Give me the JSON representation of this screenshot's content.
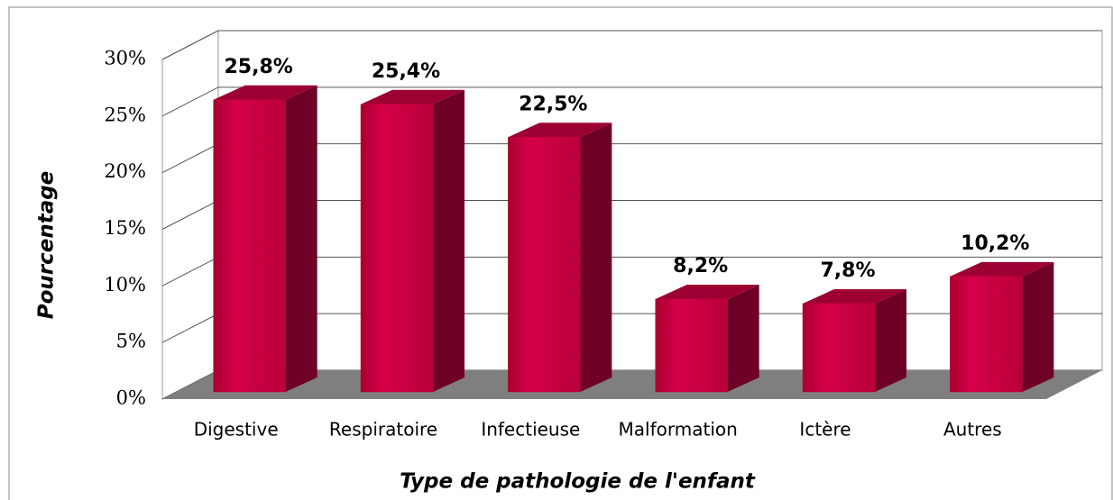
{
  "chart_data": {
    "type": "bar3d",
    "x_label": "Type de pathologie de l'enfant",
    "y_label": "Pourcentage",
    "categories": [
      "Digestive",
      "Respiratoire",
      "Infectieuse",
      "Malformation",
      "Ictère",
      "Autres"
    ],
    "values": [
      25.8,
      25.4,
      22.5,
      8.2,
      7.8,
      10.2
    ],
    "value_labels": [
      "25,8%",
      "25,4%",
      "22,5%",
      "8,2%",
      "7,8%",
      "10,2%"
    ],
    "color": "#c8003c",
    "ylim": [
      0,
      30
    ],
    "yticks": [
      {
        "value": 0,
        "label": "0%"
      },
      {
        "value": 5,
        "label": "5%"
      },
      {
        "value": 10,
        "label": "10%"
      },
      {
        "value": 15,
        "label": "15%"
      },
      {
        "value": 20,
        "label": "20%"
      },
      {
        "value": 25,
        "label": "25%"
      },
      {
        "value": 30,
        "label": "30%"
      }
    ],
    "grid": true
  }
}
